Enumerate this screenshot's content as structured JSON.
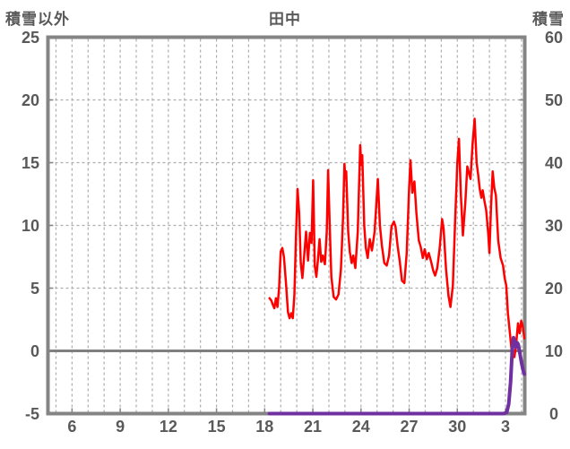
{
  "chart_data": {
    "type": "line",
    "title": "田中",
    "left_axis": {
      "label": "積雪以外",
      "range": [
        -5,
        25
      ],
      "ticks": [
        {
          "v": 25,
          "label": "25"
        },
        {
          "v": 20,
          "label": "20"
        },
        {
          "v": 15,
          "label": "15"
        },
        {
          "v": 10,
          "label": "10"
        },
        {
          "v": 5,
          "label": "5"
        },
        {
          "v": 0,
          "label": "0"
        },
        {
          "v": -5,
          "label": "-5"
        }
      ],
      "grid_values": [
        20,
        15,
        10,
        5
      ],
      "zero_line_value": 0
    },
    "right_axis": {
      "label": "積雪",
      "range": [
        0,
        60
      ],
      "ticks": [
        {
          "v": 60,
          "label": "60"
        },
        {
          "v": 50,
          "label": "50"
        },
        {
          "v": 40,
          "label": "40"
        },
        {
          "v": 30,
          "label": "30"
        },
        {
          "v": 20,
          "label": "20"
        },
        {
          "v": 10,
          "label": "10"
        },
        {
          "v": 0,
          "label": "0"
        }
      ]
    },
    "x_axis": {
      "range": [
        4.5,
        34.2
      ],
      "gridline_step": 1,
      "ticks": [
        {
          "day": 6,
          "label": "6"
        },
        {
          "day": 9,
          "label": "9"
        },
        {
          "day": 12,
          "label": "12"
        },
        {
          "day": 15,
          "label": "15"
        },
        {
          "day": 18,
          "label": "18"
        },
        {
          "day": 21,
          "label": "21"
        },
        {
          "day": 24,
          "label": "24"
        },
        {
          "day": 27,
          "label": "27"
        },
        {
          "day": 30,
          "label": "30"
        },
        {
          "day": 33,
          "label": "3"
        }
      ]
    },
    "legend": "none",
    "grid": "dashed",
    "series": [
      {
        "id": "temperature-line",
        "name": "積雪以外",
        "axis": "left",
        "color": "#ff0000",
        "width": 2.5,
        "points": [
          [
            18.3,
            4.2
          ],
          [
            18.42,
            4.0
          ],
          [
            18.5,
            3.7
          ],
          [
            18.6,
            3.4
          ],
          [
            18.7,
            4.2
          ],
          [
            18.8,
            3.5
          ],
          [
            18.9,
            5.0
          ],
          [
            19.0,
            7.9
          ],
          [
            19.1,
            8.2
          ],
          [
            19.2,
            7.5
          ],
          [
            19.32,
            5.5
          ],
          [
            19.45,
            3.1
          ],
          [
            19.55,
            2.6
          ],
          [
            19.65,
            3.0
          ],
          [
            19.75,
            2.6
          ],
          [
            19.85,
            4.5
          ],
          [
            19.95,
            9.0
          ],
          [
            20.05,
            12.9
          ],
          [
            20.15,
            11.0
          ],
          [
            20.25,
            7.0
          ],
          [
            20.35,
            5.8
          ],
          [
            20.5,
            8.2
          ],
          [
            20.58,
            9.5
          ],
          [
            20.7,
            7.2
          ],
          [
            20.82,
            9.4
          ],
          [
            20.92,
            8.6
          ],
          [
            21.02,
            13.6
          ],
          [
            21.12,
            6.8
          ],
          [
            21.22,
            5.9
          ],
          [
            21.32,
            7.3
          ],
          [
            21.42,
            8.9
          ],
          [
            21.52,
            7.1
          ],
          [
            21.62,
            7.6
          ],
          [
            21.75,
            6.9
          ],
          [
            21.87,
            9.5
          ],
          [
            21.95,
            14.4
          ],
          [
            22.05,
            10.0
          ],
          [
            22.15,
            5.9
          ],
          [
            22.3,
            4.3
          ],
          [
            22.45,
            4.1
          ],
          [
            22.6,
            4.5
          ],
          [
            22.75,
            6.5
          ],
          [
            22.88,
            10.5
          ],
          [
            22.97,
            14.9
          ],
          [
            23.03,
            13.8
          ],
          [
            23.08,
            14.3
          ],
          [
            23.2,
            9.5
          ],
          [
            23.3,
            7.9
          ],
          [
            23.42,
            7.0
          ],
          [
            23.52,
            7.6
          ],
          [
            23.65,
            6.6
          ],
          [
            23.8,
            9.5
          ],
          [
            23.95,
            16.4
          ],
          [
            24.02,
            14.8
          ],
          [
            24.08,
            15.6
          ],
          [
            24.2,
            10.0
          ],
          [
            24.3,
            8.2
          ],
          [
            24.42,
            7.4
          ],
          [
            24.55,
            8.9
          ],
          [
            24.68,
            8.0
          ],
          [
            24.85,
            9.5
          ],
          [
            25.05,
            13.7
          ],
          [
            25.18,
            10.0
          ],
          [
            25.3,
            8.4
          ],
          [
            25.45,
            7.0
          ],
          [
            25.6,
            6.8
          ],
          [
            25.75,
            7.6
          ],
          [
            25.9,
            9.9
          ],
          [
            26.05,
            10.3
          ],
          [
            26.15,
            9.9
          ],
          [
            26.28,
            8.4
          ],
          [
            26.42,
            7.1
          ],
          [
            26.55,
            5.6
          ],
          [
            26.7,
            5.4
          ],
          [
            26.85,
            7.8
          ],
          [
            27.0,
            13.0
          ],
          [
            27.08,
            15.2
          ],
          [
            27.2,
            12.6
          ],
          [
            27.33,
            13.5
          ],
          [
            27.45,
            11.0
          ],
          [
            27.6,
            8.8
          ],
          [
            27.72,
            8.3
          ],
          [
            27.85,
            7.4
          ],
          [
            27.97,
            8.1
          ],
          [
            28.1,
            7.3
          ],
          [
            28.22,
            7.8
          ],
          [
            28.35,
            7.2
          ],
          [
            28.5,
            6.4
          ],
          [
            28.62,
            6.0
          ],
          [
            28.75,
            6.6
          ],
          [
            28.9,
            8.2
          ],
          [
            29.05,
            10.5
          ],
          [
            29.15,
            9.7
          ],
          [
            29.3,
            6.5
          ],
          [
            29.45,
            4.4
          ],
          [
            29.57,
            3.5
          ],
          [
            29.72,
            5.2
          ],
          [
            29.87,
            10.5
          ],
          [
            30.0,
            15.0
          ],
          [
            30.1,
            16.9
          ],
          [
            30.22,
            12.5
          ],
          [
            30.35,
            9.2
          ],
          [
            30.5,
            11.8
          ],
          [
            30.62,
            14.7
          ],
          [
            30.72,
            14.2
          ],
          [
            30.82,
            13.7
          ],
          [
            30.95,
            16.5
          ],
          [
            31.08,
            18.5
          ],
          [
            31.2,
            15.0
          ],
          [
            31.3,
            14.0
          ],
          [
            31.4,
            12.9
          ],
          [
            31.5,
            12.2
          ],
          [
            31.58,
            12.8
          ],
          [
            31.68,
            12.0
          ],
          [
            31.8,
            11.2
          ],
          [
            31.92,
            9.4
          ],
          [
            32.0,
            7.8
          ],
          [
            32.1,
            11.5
          ],
          [
            32.2,
            14.3
          ],
          [
            32.3,
            13.0
          ],
          [
            32.4,
            12.4
          ],
          [
            32.55,
            8.8
          ],
          [
            32.7,
            7.4
          ],
          [
            32.85,
            6.8
          ],
          [
            32.95,
            5.8
          ],
          [
            33.05,
            5.2
          ],
          [
            33.15,
            3.0
          ],
          [
            33.3,
            1.1
          ],
          [
            33.42,
            -0.4
          ],
          [
            33.55,
            -0.5
          ],
          [
            33.65,
            0.3
          ],
          [
            33.78,
            2.2
          ],
          [
            33.88,
            1.4
          ],
          [
            33.98,
            2.4
          ],
          [
            34.08,
            1.9
          ],
          [
            34.17,
            1.0
          ]
        ]
      },
      {
        "id": "snow-line",
        "name": "積雪",
        "axis": "right",
        "color": "#7030a0",
        "width": 4,
        "points": [
          [
            18.3,
            0
          ],
          [
            24.0,
            0
          ],
          [
            30.0,
            0
          ],
          [
            32.0,
            0
          ],
          [
            32.9,
            0
          ],
          [
            33.08,
            0.2
          ],
          [
            33.2,
            1.5
          ],
          [
            33.32,
            5.0
          ],
          [
            33.42,
            10.0
          ],
          [
            33.5,
            12.1
          ],
          [
            33.58,
            11.5
          ],
          [
            33.66,
            10.6
          ],
          [
            33.73,
            11.3
          ],
          [
            33.8,
            11.0
          ],
          [
            33.9,
            9.6
          ],
          [
            34.0,
            8.1
          ],
          [
            34.1,
            6.9
          ],
          [
            34.17,
            6.3
          ]
        ]
      }
    ],
    "colors": {
      "background": "#ffffff",
      "frame": "#848484",
      "grid": "#adadad",
      "zero_line": "#7f7f7f",
      "text": "#595959",
      "temperature": "#ff0000",
      "snow": "#7030a0"
    }
  }
}
